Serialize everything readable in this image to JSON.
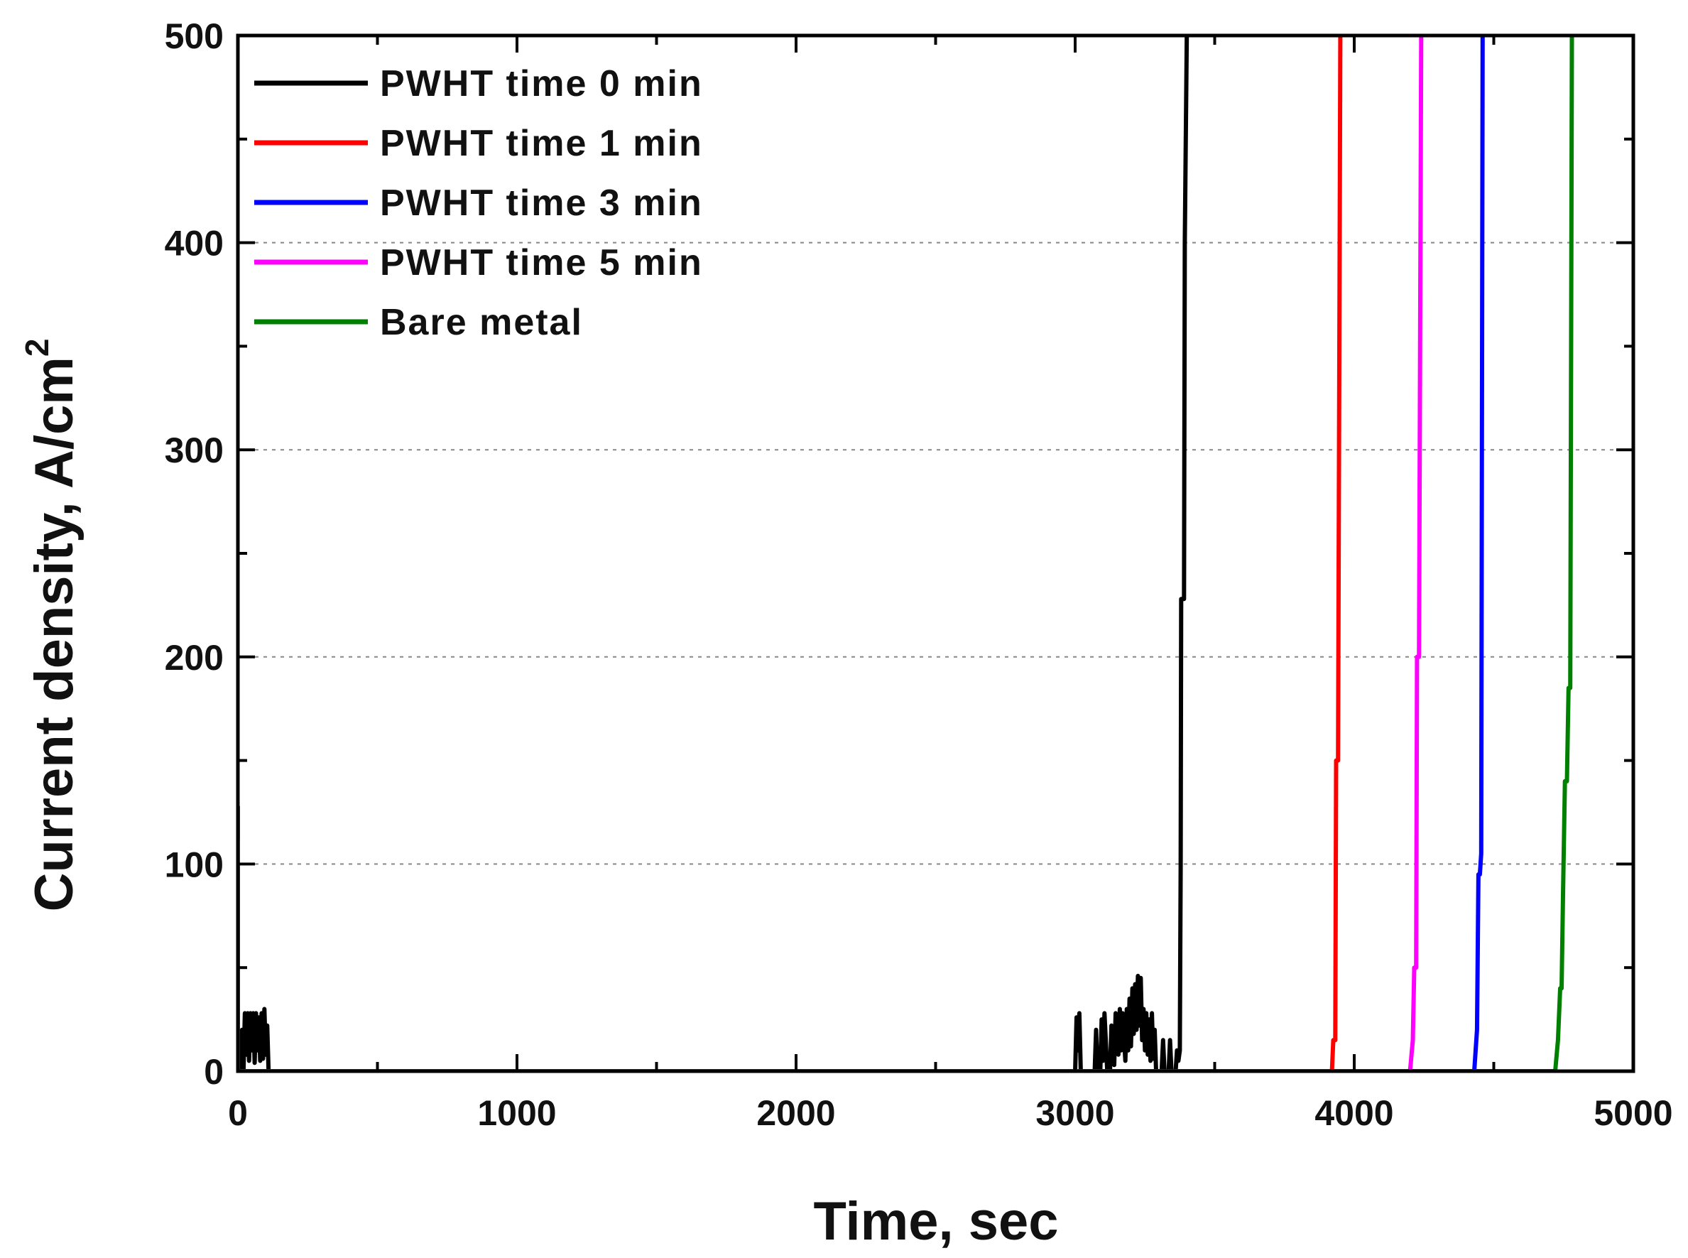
{
  "chart_data": {
    "type": "line",
    "xlabel": "Time, sec",
    "ylabel": "Current density, A/cm",
    "ylabel_superscript": "2",
    "xlim": [
      0,
      5000
    ],
    "ylim": [
      0,
      500
    ],
    "x_ticks": [
      0,
      1000,
      2000,
      3000,
      4000,
      5000
    ],
    "y_ticks": [
      0,
      100,
      200,
      300,
      400,
      500
    ],
    "x_tick_labels": [
      "0",
      "1000",
      "2000",
      "3000",
      "4000",
      "5000"
    ],
    "y_tick_labels": [
      "0",
      "100",
      "200",
      "300",
      "400",
      "500"
    ],
    "gridlines_y": [
      100,
      200,
      300,
      400
    ],
    "legend_position": "top-left",
    "series": [
      {
        "name": "PWHT time 0 min",
        "color": "#000000",
        "points": [
          [
            0,
            0
          ],
          [
            10,
            0
          ],
          [
            15,
            20
          ],
          [
            20,
            0
          ],
          [
            25,
            28
          ],
          [
            30,
            8
          ],
          [
            35,
            28
          ],
          [
            40,
            5
          ],
          [
            45,
            28
          ],
          [
            50,
            10
          ],
          [
            55,
            28
          ],
          [
            60,
            4
          ],
          [
            65,
            28
          ],
          [
            70,
            10
          ],
          [
            75,
            26
          ],
          [
            80,
            5
          ],
          [
            85,
            28
          ],
          [
            90,
            6
          ],
          [
            95,
            30
          ],
          [
            100,
            8
          ],
          [
            105,
            22
          ],
          [
            110,
            0
          ],
          [
            3000,
            0
          ],
          [
            3005,
            26
          ],
          [
            3010,
            10
          ],
          [
            3015,
            28
          ],
          [
            3020,
            0
          ],
          [
            3070,
            0
          ],
          [
            3075,
            20
          ],
          [
            3080,
            0
          ],
          [
            3090,
            0
          ],
          [
            3095,
            25
          ],
          [
            3100,
            5
          ],
          [
            3105,
            28
          ],
          [
            3115,
            0
          ],
          [
            3125,
            0
          ],
          [
            3130,
            22
          ],
          [
            3140,
            3
          ],
          [
            3145,
            28
          ],
          [
            3155,
            8
          ],
          [
            3160,
            30
          ],
          [
            3165,
            10
          ],
          [
            3170,
            28
          ],
          [
            3180,
            5
          ],
          [
            3185,
            30
          ],
          [
            3190,
            10
          ],
          [
            3195,
            35
          ],
          [
            3200,
            12
          ],
          [
            3205,
            40
          ],
          [
            3210,
            18
          ],
          [
            3215,
            42
          ],
          [
            3220,
            20
          ],
          [
            3225,
            46
          ],
          [
            3230,
            22
          ],
          [
            3235,
            45
          ],
          [
            3240,
            15
          ],
          [
            3245,
            30
          ],
          [
            3250,
            10
          ],
          [
            3255,
            28
          ],
          [
            3260,
            8
          ],
          [
            3265,
            25
          ],
          [
            3270,
            5
          ],
          [
            3275,
            28
          ],
          [
            3280,
            6
          ],
          [
            3285,
            20
          ],
          [
            3290,
            0
          ],
          [
            3310,
            0
          ],
          [
            3315,
            15
          ],
          [
            3320,
            0
          ],
          [
            3335,
            0
          ],
          [
            3340,
            15
          ],
          [
            3345,
            0
          ],
          [
            3360,
            0
          ],
          [
            3365,
            10
          ],
          [
            3370,
            5
          ],
          [
            3375,
            10
          ],
          [
            3378,
            100
          ],
          [
            3380,
            228
          ],
          [
            3390,
            228
          ],
          [
            3393,
            400
          ],
          [
            3400,
            500
          ]
        ]
      },
      {
        "name": "PWHT time 1 min",
        "color": "#ff0000",
        "points": [
          [
            0,
            128
          ],
          [
            0,
            0
          ],
          [
            3920,
            0
          ],
          [
            3925,
            15
          ],
          [
            3932,
            15
          ],
          [
            3935,
            150
          ],
          [
            3942,
            150
          ],
          [
            3950,
            500
          ]
        ]
      },
      {
        "name": "PWHT time 3 min",
        "color": "#0000ff",
        "points": [
          [
            0,
            0
          ],
          [
            4430,
            0
          ],
          [
            4440,
            20
          ],
          [
            4445,
            95
          ],
          [
            4450,
            95
          ],
          [
            4455,
            105
          ],
          [
            4460,
            500
          ]
        ]
      },
      {
        "name": "PWHT time 5 min",
        "color": "#ff00ff",
        "points": [
          [
            0,
            112
          ],
          [
            0,
            0
          ],
          [
            4200,
            0
          ],
          [
            4210,
            15
          ],
          [
            4215,
            50
          ],
          [
            4222,
            50
          ],
          [
            4225,
            200
          ],
          [
            4232,
            200
          ],
          [
            4240,
            500
          ]
        ]
      },
      {
        "name": "Bare metal",
        "color": "#008000",
        "points": [
          [
            0,
            100
          ],
          [
            0,
            0
          ],
          [
            4720,
            0
          ],
          [
            4730,
            15
          ],
          [
            4738,
            40
          ],
          [
            4743,
            40
          ],
          [
            4748,
            85
          ],
          [
            4755,
            140
          ],
          [
            4762,
            140
          ],
          [
            4768,
            185
          ],
          [
            4774,
            185
          ],
          [
            4780,
            500
          ]
        ]
      }
    ]
  }
}
